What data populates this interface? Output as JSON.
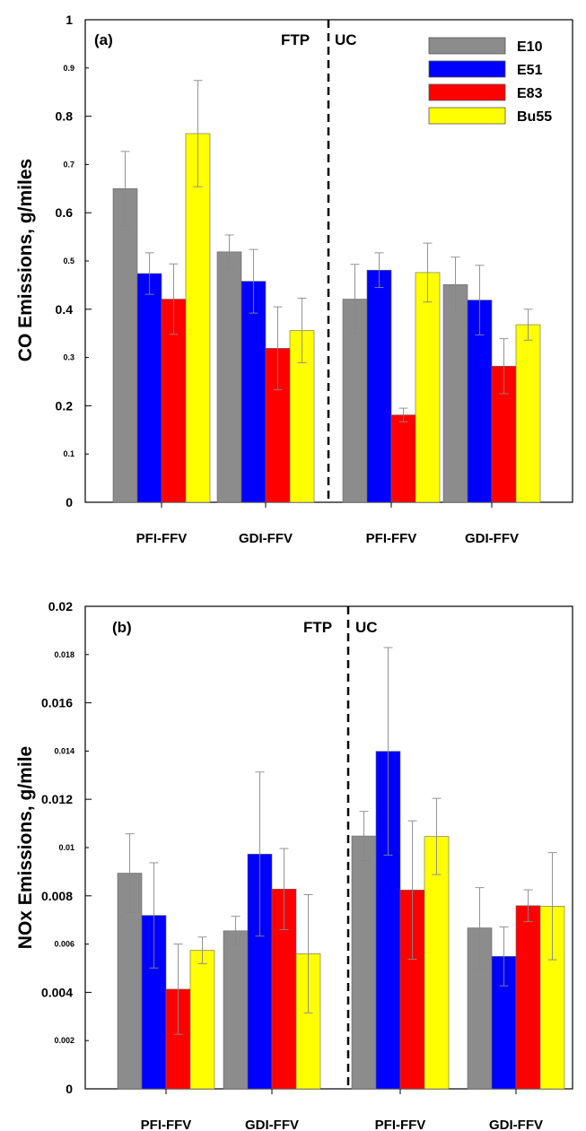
{
  "figure": {
    "panels": [
      {
        "panel_tag": "(a)",
        "cycle_left": "FTP",
        "cycle_right": "UC",
        "ylabel": "CO Emissions, g/miles"
      },
      {
        "panel_tag": "(b)",
        "cycle_left": "FTP",
        "cycle_right": "UC",
        "ylabel": "NOx Emissions, g/mile"
      }
    ],
    "legend": [
      {
        "label": "E10",
        "color": "#8c8c8c"
      },
      {
        "label": "E51",
        "color": "#0000ff"
      },
      {
        "label": "E83",
        "color": "#ff0000"
      },
      {
        "label": "Bu55",
        "color": "#ffff00"
      }
    ]
  },
  "chart_data": [
    {
      "type": "bar",
      "title": "",
      "xlabel": "",
      "ylabel": "CO Emissions, g/miles",
      "ylim": [
        0,
        1
      ],
      "major_ticks": [
        "0",
        "0.2",
        "0.4",
        "0.6",
        "0.8",
        "1"
      ],
      "minor_ticks": [
        "0.1",
        "0.3",
        "0.5",
        "0.7",
        "0.9"
      ],
      "categories": [
        "PFI-FFV",
        "GDI-FFV",
        "PFI-FFV",
        "GDI-FFV"
      ],
      "groups": [
        "FTP",
        "FTP",
        "UC",
        "UC"
      ],
      "legend_position": "top-right",
      "grid": false,
      "series": [
        {
          "name": "E10",
          "color": "#8c8c8c",
          "values": [
            0.65,
            0.519,
            0.421,
            0.451
          ],
          "errors": [
            0.077,
            0.035,
            0.072,
            0.057
          ]
        },
        {
          "name": "E51",
          "color": "#0000ff",
          "values": [
            0.474,
            0.458,
            0.481,
            0.419
          ],
          "errors": [
            0.043,
            0.066,
            0.036,
            0.072
          ]
        },
        {
          "name": "E83",
          "color": "#ff0000",
          "values": [
            0.421,
            0.319,
            0.181,
            0.282
          ],
          "errors": [
            0.073,
            0.086,
            0.014,
            0.057
          ]
        },
        {
          "name": "Bu55",
          "color": "#ffff00",
          "values": [
            0.764,
            0.356,
            0.476,
            0.368
          ],
          "errors": [
            0.11,
            0.067,
            0.061,
            0.032
          ]
        }
      ]
    },
    {
      "type": "bar",
      "title": "",
      "xlabel": "",
      "ylabel": "NOx Emissions, g/mile",
      "ylim": [
        0,
        0.02
      ],
      "major_ticks": [
        "0",
        "0.004",
        "0.008",
        "0.012",
        "0.016",
        "0.02"
      ],
      "minor_ticks": [
        "0.002",
        "0.006",
        "0.01",
        "0.014",
        "0.018"
      ],
      "categories": [
        "PFI-FFV",
        "GDI-FFV",
        "PFI-FFV",
        "GDI-FFV"
      ],
      "groups": [
        "FTP",
        "FTP",
        "UC",
        "UC"
      ],
      "legend_position": "none",
      "grid": false,
      "series": [
        {
          "name": "E10",
          "color": "#8c8c8c",
          "values": [
            0.00894,
            0.00655,
            0.01048,
            0.00667
          ],
          "errors": [
            0.00163,
            0.0006,
            0.00102,
            0.00167
          ]
        },
        {
          "name": "E51",
          "color": "#0000ff",
          "values": [
            0.00719,
            0.00973,
            0.01399,
            0.00549
          ],
          "errors": [
            0.00218,
            0.0034,
            0.0043,
            0.00122
          ]
        },
        {
          "name": "E83",
          "color": "#ff0000",
          "values": [
            0.00413,
            0.00828,
            0.00824,
            0.00759
          ],
          "errors": [
            0.00187,
            0.00168,
            0.00287,
            0.00066
          ]
        },
        {
          "name": "Bu55",
          "color": "#ffff00",
          "values": [
            0.00574,
            0.0056,
            0.01046,
            0.00757
          ],
          "errors": [
            0.00055,
            0.00245,
            0.00158,
            0.00222
          ]
        }
      ]
    }
  ]
}
